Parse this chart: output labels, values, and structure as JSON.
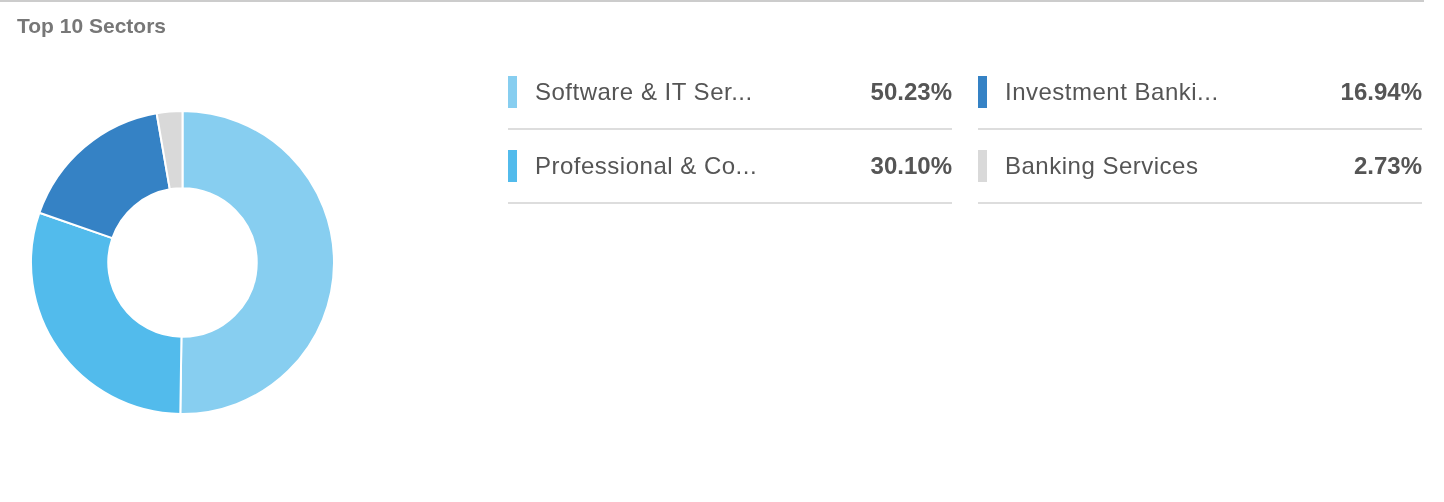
{
  "chart_data": {
    "type": "donut",
    "title": "Top 10 Sectors",
    "categories": [
      "Software & IT Ser...",
      "Professional & Co...",
      "Investment Banki...",
      "Banking Services"
    ],
    "values": [
      50.23,
      30.1,
      16.94,
      2.73
    ],
    "colors": [
      "#87cef0",
      "#52bbec",
      "#3582c5",
      "#d9d9d9"
    ],
    "value_labels": [
      "50.23%",
      "30.10%",
      "16.94%",
      "2.73%"
    ],
    "legend": "right"
  }
}
